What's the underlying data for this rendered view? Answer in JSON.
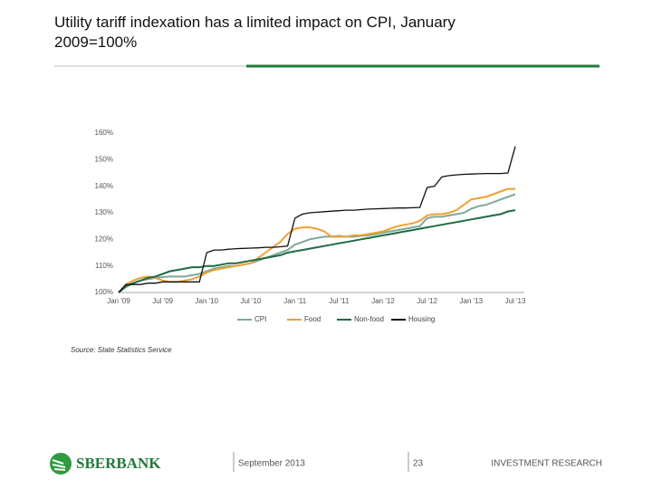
{
  "chart_data": {
    "type": "line",
    "title": "Utility tariff indexation has a limited impact on CPI, January 2009=100%",
    "source": "Source: State Statistics Service",
    "categories": [
      "Jan '09",
      null,
      null,
      null,
      null,
      null,
      "Jul '09",
      null,
      null,
      null,
      null,
      null,
      "Jan '10",
      null,
      null,
      null,
      null,
      null,
      "Jul '10",
      null,
      null,
      null,
      null,
      null,
      "Jan '11",
      null,
      null,
      null,
      null,
      null,
      "Jul '11",
      null,
      null,
      null,
      null,
      null,
      "Jan '12",
      null,
      null,
      null,
      null,
      null,
      "Jul '12",
      null,
      null,
      null,
      null,
      null,
      "Jan '13",
      null,
      null,
      null,
      null,
      null,
      "Jul '13"
    ],
    "series": [
      {
        "name": "CPI",
        "color": "#7fa99a",
        "values": [
          100,
          102,
          103.5,
          104.5,
          105,
          105.5,
          105.8,
          106,
          106,
          106,
          106.5,
          107,
          108,
          109,
          109.5,
          110,
          110,
          110.5,
          111,
          112,
          113,
          114,
          115,
          116,
          118,
          119,
          120,
          120.5,
          121,
          121,
          121.3,
          121,
          121,
          121.3,
          121.5,
          122,
          122.5,
          123,
          123.5,
          124,
          124.5,
          125,
          128,
          128.5,
          128.5,
          129,
          129.5,
          130,
          131.5,
          132.5,
          133,
          134,
          135,
          136,
          137
        ]
      },
      {
        "name": "Food",
        "color": "#f0a030",
        "values": [
          100,
          103,
          104.5,
          105.5,
          106,
          105.5,
          104.5,
          104,
          104,
          104.5,
          105,
          106,
          107.5,
          108.5,
          109,
          109.5,
          110,
          110.5,
          111,
          113,
          115,
          117,
          119,
          122,
          124,
          124.5,
          124.5,
          124,
          123,
          121,
          121,
          121,
          121.5,
          121.5,
          122,
          122.5,
          123,
          124,
          125,
          125.5,
          126,
          127,
          129,
          129.5,
          129.5,
          130,
          131,
          133,
          135,
          135.5,
          136,
          137,
          138,
          139,
          139
        ]
      },
      {
        "name": "Non-food",
        "color": "#1f6b45",
        "values": [
          100,
          102.5,
          103.5,
          104.5,
          105.5,
          106,
          107,
          108,
          108.5,
          109,
          109.5,
          109.5,
          110,
          110,
          110.5,
          111,
          111,
          111.5,
          112,
          112.5,
          113,
          113.5,
          114,
          115,
          115.5,
          116,
          116.5,
          117,
          117.5,
          118,
          118.5,
          119,
          119.5,
          120,
          120.5,
          121,
          121.5,
          122,
          122.5,
          123,
          123.5,
          124,
          124.5,
          125,
          125.5,
          126,
          126.5,
          127,
          127.5,
          128,
          128.5,
          129,
          129.5,
          130.5,
          131
        ]
      },
      {
        "name": "Housing",
        "color": "#111111",
        "values": [
          100,
          103,
          103,
          103,
          103.5,
          103.5,
          104,
          104,
          104,
          104,
          104,
          104,
          115,
          116,
          116,
          116.3,
          116.5,
          116.6,
          116.7,
          116.8,
          117,
          117,
          117.2,
          117.5,
          128,
          129.5,
          130,
          130.2,
          130.4,
          130.6,
          130.8,
          131,
          131,
          131.2,
          131.4,
          131.5,
          131.6,
          131.7,
          131.8,
          131.8,
          131.9,
          132,
          139.5,
          140,
          143.5,
          144,
          144.3,
          144.5,
          144.6,
          144.7,
          144.8,
          144.8,
          144.8,
          145,
          155
        ]
      }
    ],
    "ylim": [
      100,
      160
    ],
    "yticks": [
      {
        "value": 100,
        "label": "100%"
      },
      {
        "value": 110,
        "label": "110%"
      },
      {
        "value": 120,
        "label": "120%"
      },
      {
        "value": 130,
        "label": "130%"
      },
      {
        "value": 140,
        "label": "140%"
      },
      {
        "value": 150,
        "label": "150%"
      },
      {
        "value": 160,
        "label": "160%"
      }
    ],
    "grid": false
  },
  "footer": {
    "logo": "SBERBANK",
    "date": "September 2013",
    "page": "23",
    "section": "INVESTMENT RESEARCH"
  }
}
